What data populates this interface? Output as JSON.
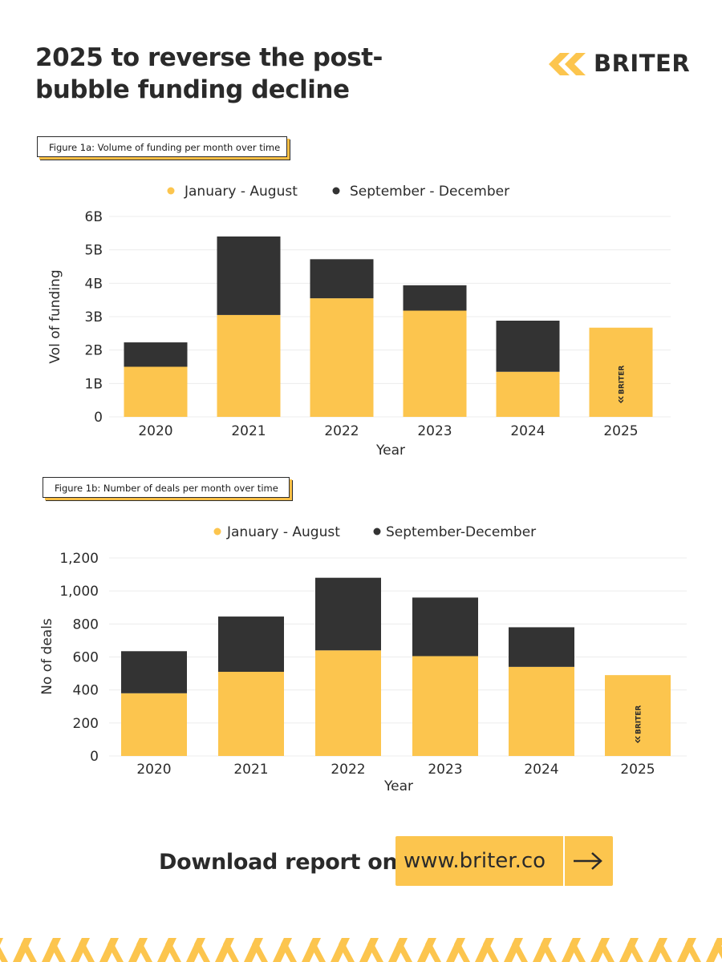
{
  "header": {
    "title": "2025 to reverse the post-bubble funding decline",
    "brand": "BRITER"
  },
  "colors": {
    "accent": "#fcc54e",
    "dark": "#333333"
  },
  "chart_data": [
    {
      "type": "bar",
      "stacked": true,
      "figure_label": "Figure 1a: Volume of funding per month over time",
      "title": "",
      "xlabel": "Year",
      "ylabel": "Vol of funding",
      "categories": [
        "2020",
        "2021",
        "2022",
        "2023",
        "2024",
        "2025"
      ],
      "yticks": [
        "0",
        "1B",
        "2B",
        "3B",
        "4B",
        "5B",
        "6B"
      ],
      "ylim": [
        0,
        6
      ],
      "legend_position": "top",
      "series": [
        {
          "name": "January - August",
          "color": "#fcc54e",
          "values": [
            1.5,
            3.05,
            3.55,
            3.18,
            1.35,
            2.67
          ]
        },
        {
          "name": "September - December",
          "color": "#333333",
          "values": [
            0.73,
            2.35,
            1.17,
            0.76,
            1.53,
            0
          ]
        }
      ]
    },
    {
      "type": "bar",
      "stacked": true,
      "figure_label": "Figure 1b: Number of deals per month over time",
      "title": "",
      "xlabel": "Year",
      "ylabel": "No of deals",
      "categories": [
        "2020",
        "2021",
        "2022",
        "2023",
        "2024",
        "2025"
      ],
      "yticks": [
        "0",
        "200",
        "400",
        "600",
        "800",
        "1,000",
        "1,200"
      ],
      "ylim": [
        0,
        1200
      ],
      "legend_position": "top",
      "series": [
        {
          "name": "January - August",
          "color": "#fcc54e",
          "values": [
            380,
            510,
            640,
            605,
            540,
            490
          ]
        },
        {
          "name": "September-December",
          "color": "#333333",
          "values": [
            255,
            335,
            440,
            355,
            240,
            0
          ]
        }
      ]
    }
  ],
  "cta": {
    "text": "Download report on",
    "url": "www.briter.co",
    "arrow_icon": "arrow-right-icon"
  }
}
